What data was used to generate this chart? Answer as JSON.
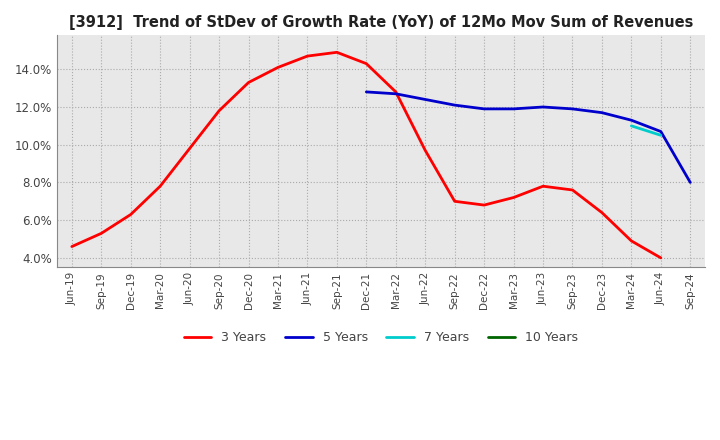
{
  "title": "[3912]  Trend of StDev of Growth Rate (YoY) of 12Mo Mov Sum of Revenues",
  "title_fontsize": 10.5,
  "legend_entries": [
    "3 Years",
    "5 Years",
    "7 Years",
    "10 Years"
  ],
  "legend_colors": [
    "#ff0000",
    "#0000cc",
    "#00cccc",
    "#006600"
  ],
  "ylim": [
    0.035,
    0.158
  ],
  "yticks": [
    0.04,
    0.06,
    0.08,
    0.1,
    0.12,
    0.14
  ],
  "ytick_labels": [
    "4.0%",
    "6.0%",
    "8.0%",
    "10.0%",
    "12.0%",
    "14.0%"
  ],
  "x_labels": [
    "Jun-19",
    "Sep-19",
    "Dec-19",
    "Mar-20",
    "Jun-20",
    "Sep-20",
    "Dec-20",
    "Mar-21",
    "Jun-21",
    "Sep-21",
    "Dec-21",
    "Mar-22",
    "Jun-22",
    "Sep-22",
    "Dec-22",
    "Mar-23",
    "Jun-23",
    "Sep-23",
    "Dec-23",
    "Mar-24",
    "Jun-24",
    "Sep-24"
  ],
  "line_3y": [
    0.046,
    0.053,
    0.063,
    0.078,
    0.098,
    0.118,
    0.133,
    0.141,
    0.147,
    0.149,
    0.143,
    0.128,
    0.097,
    0.07,
    0.068,
    0.072,
    0.078,
    0.076,
    0.064,
    0.049,
    0.04,
    null
  ],
  "line_5y": [
    null,
    null,
    null,
    null,
    null,
    null,
    null,
    null,
    null,
    null,
    0.128,
    0.127,
    0.124,
    0.121,
    0.119,
    0.119,
    0.12,
    0.119,
    0.117,
    0.113,
    0.107,
    0.08
  ],
  "line_7y": [
    null,
    null,
    null,
    null,
    null,
    null,
    null,
    null,
    null,
    null,
    null,
    null,
    null,
    null,
    null,
    null,
    null,
    null,
    null,
    0.11,
    0.105,
    null
  ],
  "line_10y": [
    null,
    null,
    null,
    null,
    null,
    null,
    null,
    null,
    null,
    null,
    null,
    null,
    null,
    null,
    null,
    null,
    null,
    null,
    null,
    null,
    null,
    null
  ],
  "plot_bg_color": "#e8e8e8",
  "background_color": "#ffffff",
  "grid_color": "#aaaaaa"
}
